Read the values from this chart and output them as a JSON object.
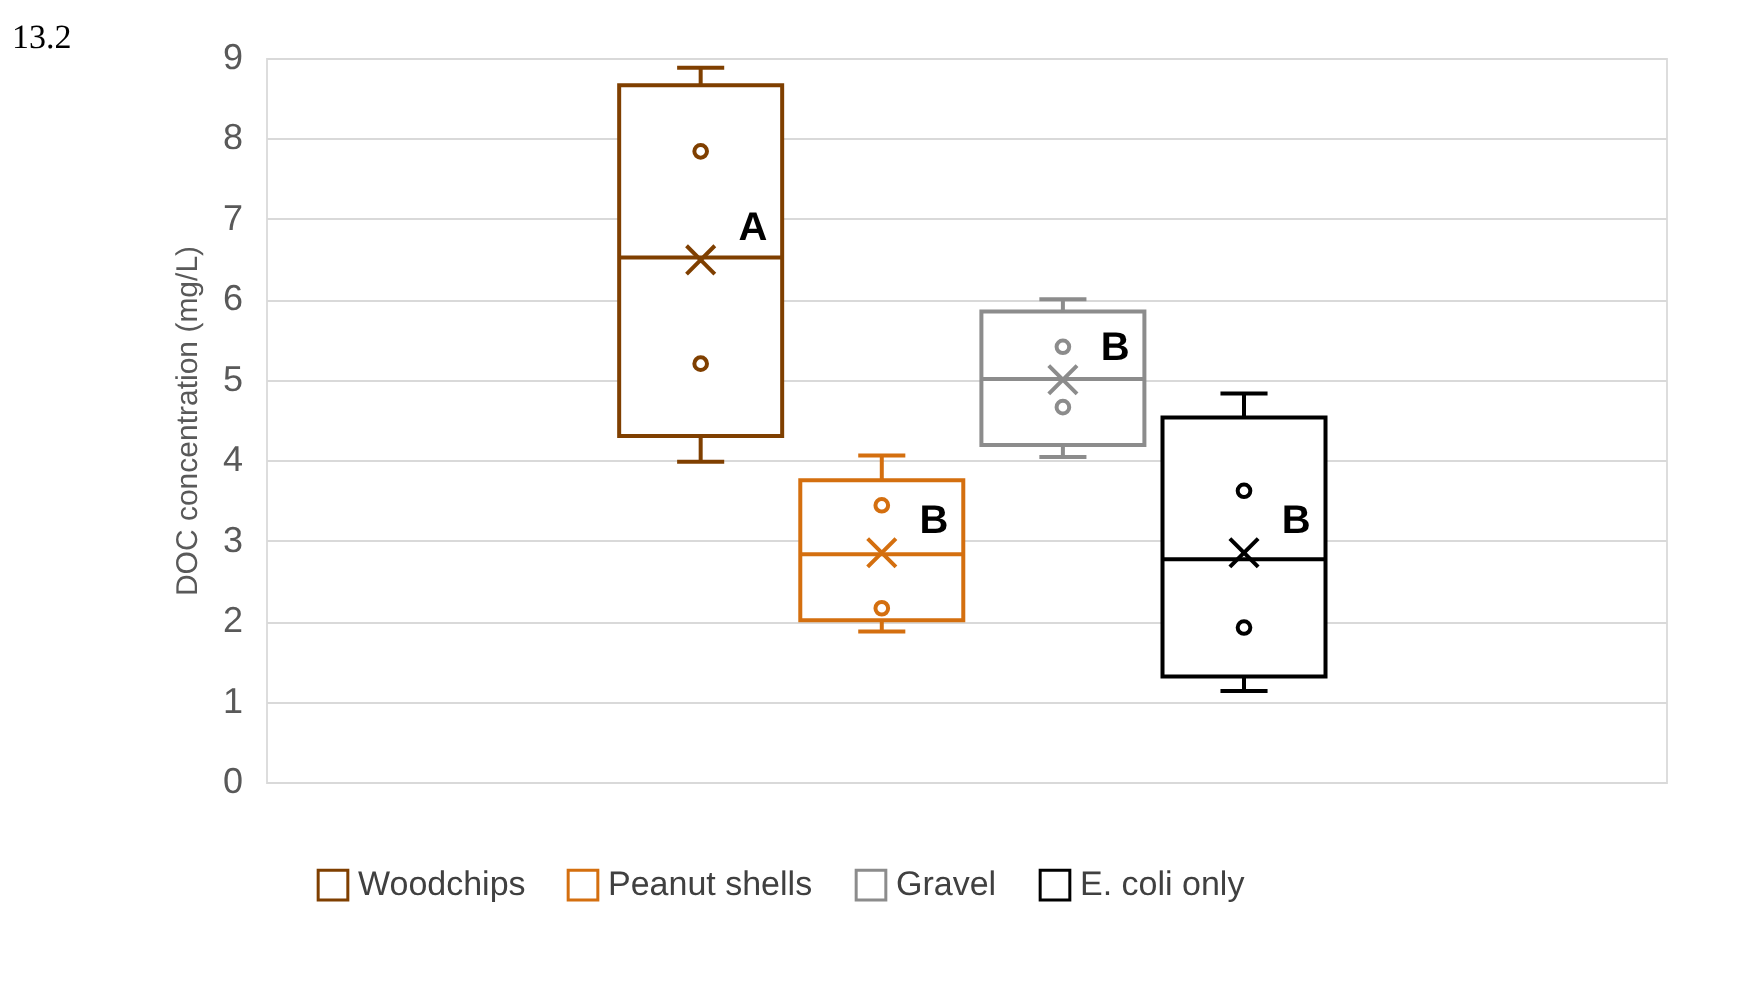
{
  "chart_data": {
    "type": "box",
    "categories": [
      null
    ],
    "ylabel": "DOC concentration (mg/L)",
    "ylim": [
      0,
      9
    ],
    "yticks": [
      0,
      1,
      2,
      3,
      4,
      5,
      6,
      7,
      8,
      9
    ],
    "grid": "y",
    "legend": "bottom",
    "tick_labels": "y",
    "series": [
      {
        "name": "Woodchips",
        "color": "#7f3f00",
        "boxes": [
          {
            "low": 3.98,
            "q1": 4.3,
            "median": 6.52,
            "q3": 8.66,
            "high": 8.88,
            "mean": 6.49,
            "outliers": [
              7.84,
              5.2
            ]
          }
        ]
      },
      {
        "name": "Peanut shells",
        "color": "#d46f0f",
        "boxes": [
          {
            "low": 1.87,
            "q1": 2.01,
            "median": 2.83,
            "q3": 3.75,
            "high": 4.06,
            "mean": 2.85,
            "outliers": [
              3.44,
              2.16
            ]
          }
        ]
      },
      {
        "name": "Gravel",
        "color": "#8c8c8c",
        "boxes": [
          {
            "low": 4.04,
            "q1": 4.19,
            "median": 5.01,
            "q3": 5.85,
            "high": 6.0,
            "mean": 5.0,
            "outliers": [
              5.41,
              4.66
            ]
          }
        ]
      },
      {
        "name": "E. coli only",
        "color": "#000000",
        "boxes": [
          {
            "low": 1.13,
            "q1": 1.31,
            "median": 2.77,
            "q3": 4.53,
            "high": 4.83,
            "mean": 2.85,
            "outliers": [
              3.62,
              1.92
            ]
          }
        ]
      }
    ],
    "annotations": [
      {
        "text": "A",
        "y": 6.49
      },
      {
        "text": "B",
        "y": 2.85
      },
      {
        "text": "B",
        "y": 5.0
      },
      {
        "text": "B",
        "y": 2.85
      },
      "13.2"
    ]
  }
}
